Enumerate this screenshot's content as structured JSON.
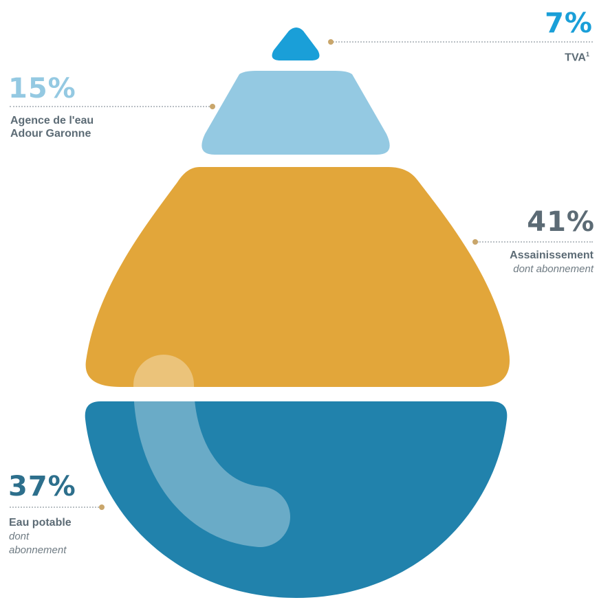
{
  "chart_data": {
    "type": "pie",
    "segments": [
      {
        "key": "tva",
        "percent_label": "7%",
        "value": 7,
        "label": "TVA",
        "footnote": "1",
        "sublabel": "",
        "color": "#1a9fd8"
      },
      {
        "key": "agence",
        "percent_label": "15%",
        "value": 15,
        "label_lines": [
          "Agence de l'eau",
          "Adour Garonne"
        ],
        "sublabel": "",
        "color": "#94c9e2"
      },
      {
        "key": "assainissement",
        "percent_label": "41%",
        "value": 41,
        "label": "Assainissement",
        "sublabel": "dont abonnement",
        "color": "#e2a63a"
      },
      {
        "key": "eau_potable",
        "percent_label": "37%",
        "value": 37,
        "label": "Eau potable",
        "sublabel_lines": [
          "dont",
          "abonnement"
        ],
        "color": "#2182ac"
      }
    ],
    "percent_colors": {
      "tva": "#1a9fd8",
      "agence": "#94c9e2",
      "assainissement": "#5c6b75",
      "eau_potable": "#2d6f8c"
    }
  }
}
